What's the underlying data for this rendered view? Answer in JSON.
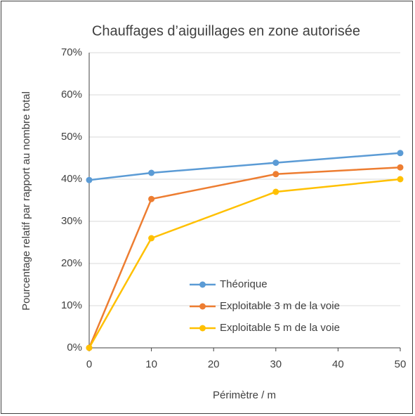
{
  "chart_data": {
    "type": "line",
    "title": "Chauffages d’aiguillages en zone autorisée",
    "xlabel": "Périmètre / m",
    "ylabel": "Pourcentage relatif par rapport au nombre total",
    "x": [
      0,
      10,
      30,
      50
    ],
    "series": [
      {
        "name": "Théorique",
        "color": "#5b9bd5",
        "values": [
          39.8,
          41.5,
          43.9,
          46.2
        ]
      },
      {
        "name": "Exploitable 3 m de la voie",
        "color": "#ed7d31",
        "values": [
          0,
          35.3,
          41.2,
          42.8
        ]
      },
      {
        "name": "Exploitable 5 m de la voie",
        "color": "#ffc000",
        "values": [
          0,
          26,
          37,
          40
        ]
      }
    ],
    "xlim": [
      0,
      50
    ],
    "xticks": [
      0,
      10,
      20,
      30,
      40,
      50
    ],
    "ylim": [
      0,
      70
    ],
    "yticks": [
      {
        "value": 0,
        "label": "0%"
      },
      {
        "value": 10,
        "label": "10%"
      },
      {
        "value": 20,
        "label": "20%"
      },
      {
        "value": 30,
        "label": "30%"
      },
      {
        "value": 40,
        "label": "40%"
      },
      {
        "value": 50,
        "label": "50%"
      },
      {
        "value": 60,
        "label": "60%"
      },
      {
        "value": 70,
        "label": "70%"
      }
    ],
    "grid": true,
    "legend": "lower right"
  }
}
